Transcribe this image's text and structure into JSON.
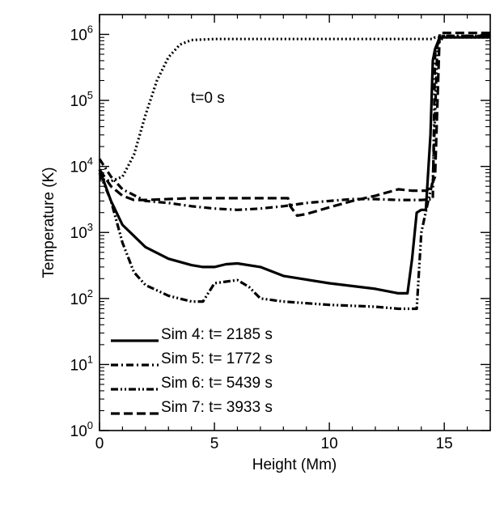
{
  "chart_data": {
    "type": "line",
    "xlabel": "Height (Mm)",
    "ylabel": "Temperature (K)",
    "xlim": [
      0,
      17
    ],
    "ylim_log10": [
      0,
      6.3
    ],
    "y_scale": "log",
    "x_ticks": [
      0,
      5,
      10,
      15
    ],
    "x_tick_labels": [
      "0",
      "5",
      "10",
      "15"
    ],
    "y_ticks": [
      {
        "base": "10",
        "exp": "0"
      },
      {
        "base": "10",
        "exp": "1"
      },
      {
        "base": "10",
        "exp": "2"
      },
      {
        "base": "10",
        "exp": "3"
      },
      {
        "base": "10",
        "exp": "4"
      },
      {
        "base": "10",
        "exp": "5"
      },
      {
        "base": "10",
        "exp": "6"
      }
    ],
    "annotation": "t=0 s",
    "legend_position": "bottom-left",
    "grid": false,
    "series": [
      {
        "name": "t=0 s",
        "in_legend": false,
        "style": "dotted",
        "x": [
          0,
          0.5,
          1,
          1.5,
          2,
          2.5,
          3,
          3.5,
          4,
          5,
          8,
          14.5,
          14.6,
          17
        ],
        "y": [
          6500,
          6000,
          7000,
          15000,
          60000,
          200000,
          450000,
          700000,
          820000,
          850000,
          850000,
          850000,
          900000,
          900000
        ]
      },
      {
        "name": "Sim 4: t= 2185 s",
        "style": "solid",
        "x": [
          0,
          0.5,
          1,
          2,
          3,
          4,
          4.5,
          5,
          5.5,
          6,
          7,
          8,
          10,
          12,
          13,
          13.4,
          13.6,
          13.8,
          14.0,
          14.2,
          14.4,
          14.5,
          14.6,
          14.8,
          15,
          17
        ],
        "y": [
          9000,
          3000,
          1300,
          600,
          400,
          320,
          300,
          300,
          330,
          340,
          300,
          220,
          170,
          140,
          120,
          120,
          400,
          2000,
          2200,
          2200,
          30000,
          400000,
          600000,
          900000,
          900000,
          900000
        ]
      },
      {
        "name": "Sim 5: t= 1772 s",
        "style": "dashdot",
        "x": [
          0,
          0.5,
          1,
          2,
          3,
          4,
          5,
          6,
          7,
          8,
          9,
          10,
          11,
          12,
          13,
          14,
          14.5,
          14.6,
          14.8,
          15,
          17
        ],
        "y": [
          13000,
          7000,
          4500,
          3000,
          2800,
          2500,
          2300,
          2200,
          2300,
          2500,
          2800,
          3000,
          3200,
          3200,
          3100,
          3100,
          3200,
          500000,
          950000,
          950000,
          950000
        ]
      },
      {
        "name": "Sim 6: t= 5439 s",
        "style": "dashdotdot",
        "x": [
          0,
          0.5,
          1,
          1.5,
          2,
          3,
          4,
          4.5,
          5,
          5.5,
          6,
          6.5,
          7,
          8,
          10,
          12,
          13,
          13.8,
          14.0,
          14.3,
          14.5,
          14.7,
          15,
          17
        ],
        "y": [
          8000,
          3000,
          700,
          250,
          160,
          110,
          90,
          90,
          170,
          180,
          190,
          150,
          100,
          90,
          80,
          75,
          70,
          70,
          1000,
          3000,
          6000,
          700000,
          950000,
          950000
        ]
      },
      {
        "name": "Sim 7: t= 3933 s",
        "style": "dashed",
        "x": [
          0,
          0.5,
          1,
          1.5,
          2,
          4,
          8.2,
          8.3,
          8.6,
          9.0,
          10,
          11,
          12,
          13,
          13.6,
          14.2,
          14.4,
          14.6,
          14.8,
          17
        ],
        "y": [
          9000,
          5000,
          3600,
          3100,
          3100,
          3300,
          3300,
          2500,
          1800,
          1900,
          2400,
          3000,
          3600,
          4500,
          4300,
          4300,
          4700,
          7000,
          1050000,
          1050000
        ]
      }
    ]
  }
}
